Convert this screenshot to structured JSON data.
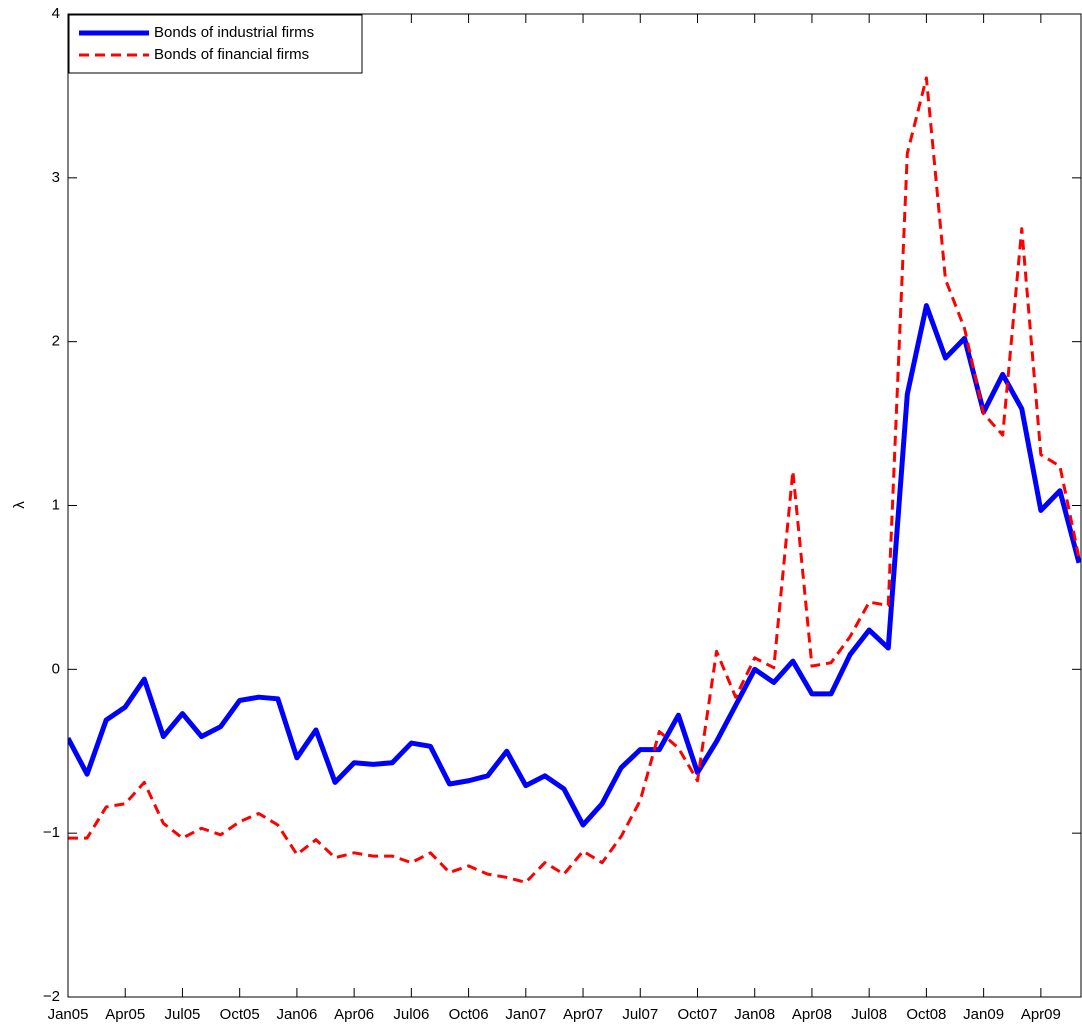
{
  "chart_data": {
    "type": "line",
    "y_label": "λ",
    "categories": [
      "Jan05",
      null,
      null,
      "Apr05",
      null,
      null,
      "Jul05",
      null,
      null,
      "Oct05",
      null,
      null,
      "Jan06",
      null,
      null,
      "Apr06",
      null,
      null,
      "Jul06",
      null,
      null,
      "Oct06",
      null,
      null,
      "Jan07",
      null,
      null,
      "Apr07",
      null,
      null,
      "Jul07",
      null,
      null,
      "Oct07",
      null,
      null,
      "Jan08",
      null,
      null,
      "Apr08",
      null,
      null,
      "Jul08",
      null,
      null,
      "Oct08",
      null,
      null,
      "Jan09",
      null,
      null,
      "Apr09",
      null,
      null
    ],
    "series": [
      {
        "name": "Bonds of industrial firms",
        "color": "#0000ff",
        "dash": "solid",
        "values": [
          -0.42,
          -0.64,
          -0.31,
          -0.23,
          -0.06,
          -0.41,
          -0.27,
          -0.41,
          -0.35,
          -0.19,
          -0.17,
          -0.18,
          -0.54,
          -0.37,
          -0.69,
          -0.57,
          -0.58,
          -0.57,
          -0.45,
          -0.47,
          -0.7,
          -0.68,
          -0.65,
          -0.5,
          -0.71,
          -0.65,
          -0.73,
          -0.95,
          -0.82,
          -0.6,
          -0.49,
          -0.49,
          -0.28,
          -0.63,
          -0.44,
          -0.22,
          0.0,
          -0.08,
          0.05,
          -0.15,
          -0.15,
          0.09,
          0.24,
          0.13,
          1.68,
          2.22,
          1.9,
          2.02,
          1.57,
          1.8,
          1.59,
          0.97,
          1.09,
          0.65
        ]
      },
      {
        "name": "Bonds of financial firms",
        "color": "#ff0000",
        "dash": "dashed",
        "values": [
          -1.03,
          -1.03,
          -0.84,
          -0.82,
          -0.69,
          -0.94,
          -1.03,
          -0.97,
          -1.01,
          -0.93,
          -0.88,
          -0.95,
          -1.13,
          -1.04,
          -1.15,
          -1.12,
          -1.14,
          -1.14,
          -1.18,
          -1.12,
          -1.24,
          -1.2,
          -1.25,
          -1.27,
          -1.3,
          -1.18,
          -1.25,
          -1.11,
          -1.18,
          -1.02,
          -0.8,
          -0.38,
          -0.48,
          -0.68,
          0.11,
          -0.17,
          0.07,
          0.01,
          1.21,
          0.02,
          0.04,
          0.2,
          0.41,
          0.39,
          3.15,
          3.61,
          2.38,
          2.08,
          1.56,
          1.43,
          2.69,
          1.31,
          1.24,
          0.68
        ]
      }
    ],
    "ylim": [
      -2,
      4
    ],
    "yticks": [
      {
        "value": -2,
        "label": "−2"
      },
      {
        "value": -1,
        "label": "−1"
      },
      0,
      1,
      2,
      3,
      4
    ],
    "legend": "upper left",
    "grid": false
  }
}
